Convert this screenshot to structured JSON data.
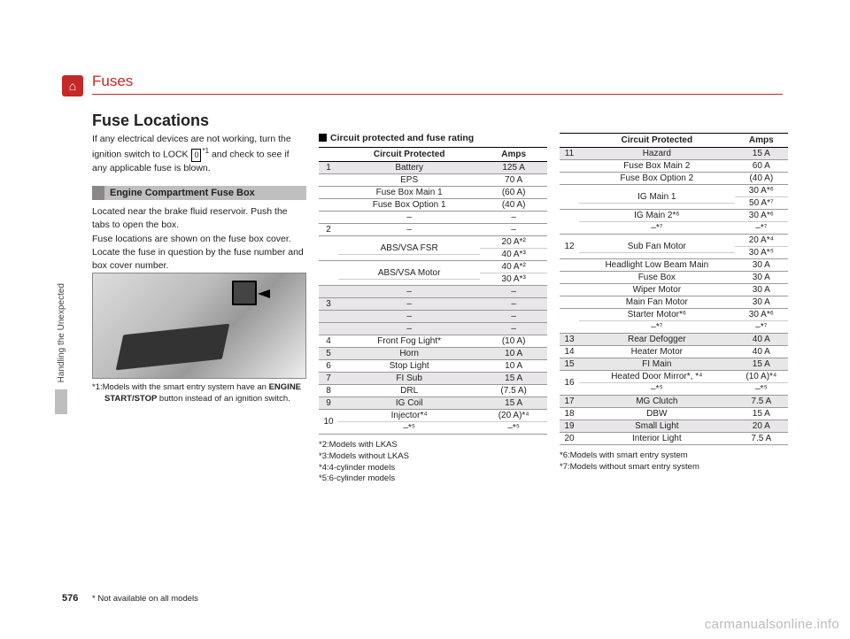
{
  "chapter": "Fuses",
  "sidebar_label": "Handling the Unexpected",
  "page_number": "576",
  "star_footnote": "* Not available on all models",
  "watermark": "carmanualsonline.info",
  "section_title": "Fuse Locations",
  "intro_text_1": "If any electrical devices are not working, turn the ignition switch to LOCK ",
  "intro_lock": "0",
  "intro_sup": "*1",
  "intro_text_2": " and check to see if any applicable fuse is blown.",
  "engine_box_heading": "Engine Compartment Fuse Box",
  "engine_box_text": "Located near the brake fluid reservoir. Push the tabs to open the box.\nFuse locations are shown on the fuse box cover. Locate the fuse in question by the fuse number and box cover number.",
  "note1_prefix": "*1:Models with the smart entry system have an ",
  "note1_bold": "ENGINE START/STOP",
  "note1_suffix": " button instead of an ignition switch.",
  "table_heading": "Circuit protected and fuse rating",
  "th_circuit": "Circuit Protected",
  "th_amps": "Amps",
  "table1": [
    {
      "n": "1",
      "c": "Battery",
      "a": "125 A",
      "shade": true
    },
    {
      "n": "",
      "c": "EPS",
      "a": "70 A",
      "shade": false
    },
    {
      "n": "",
      "c": "Fuse Box Main 1",
      "a": "(60 A)",
      "shade": false
    },
    {
      "n": "",
      "c": "Fuse Box Option 1",
      "a": "(40 A)",
      "shade": false
    },
    {
      "n": "",
      "c": "–",
      "a": "–",
      "shade": false
    },
    {
      "n": "2",
      "c": "–",
      "a": "–",
      "shade": false
    },
    {
      "n": "",
      "c": "ABS/VSA FSR",
      "a": "20 A*²\n40 A*³",
      "shade": false,
      "multi": true
    },
    {
      "n": "",
      "c": "ABS/VSA Motor",
      "a": "40 A*²\n30 A*³",
      "shade": false,
      "multi": true
    },
    {
      "n": "",
      "c": "–",
      "a": "–",
      "shade": true
    },
    {
      "n": "3",
      "c": "–",
      "a": "–",
      "shade": true
    },
    {
      "n": "",
      "c": "–",
      "a": "–",
      "shade": true
    },
    {
      "n": "",
      "c": "–",
      "a": "–",
      "shade": true
    },
    {
      "n": "4",
      "c": "Front Fog Light*",
      "a": "(10 A)",
      "shade": false
    },
    {
      "n": "5",
      "c": "Horn",
      "a": "10 A",
      "shade": true
    },
    {
      "n": "6",
      "c": "Stop Light",
      "a": "10 A",
      "shade": false
    },
    {
      "n": "7",
      "c": "FI Sub",
      "a": "15 A",
      "shade": true
    },
    {
      "n": "8",
      "c": "DRL",
      "a": "(7.5 A)",
      "shade": false
    },
    {
      "n": "9",
      "c": "IG Coil",
      "a": "15 A",
      "shade": true
    },
    {
      "n": "10",
      "c": "Injector*⁴\n–*⁵",
      "a": "(20 A)*⁴\n–*⁵",
      "shade": false,
      "multi": true
    }
  ],
  "footnotes1": "*2:Models with LKAS\n*3:Models without LKAS\n*4:4-cylinder models\n*5:6-cylinder models",
  "table2": [
    {
      "n": "11",
      "c": "Hazard",
      "a": "15 A",
      "shade": true
    },
    {
      "n": "",
      "c": "Fuse Box Main 2",
      "a": "60 A",
      "shade": false
    },
    {
      "n": "",
      "c": "Fuse Box Option 2",
      "a": "(40 A)",
      "shade": false
    },
    {
      "n": "",
      "c": "IG Main 1",
      "a": "30 A*⁶\n50 A*⁷",
      "shade": false,
      "multi": true
    },
    {
      "n": "",
      "c": "IG Main 2*⁶\n–*⁷",
      "a": "30 A*⁶\n–*⁷",
      "shade": false,
      "multi": true
    },
    {
      "n": "12",
      "c": "Sub Fan Motor",
      "a": "20 A*⁴\n30 A*⁵",
      "shade": false,
      "multi": true
    },
    {
      "n": "",
      "c": "Headlight Low Beam Main",
      "a": "30 A",
      "shade": false
    },
    {
      "n": "",
      "c": "Fuse Box",
      "a": "30 A",
      "shade": false
    },
    {
      "n": "",
      "c": "Wiper Motor",
      "a": "30 A",
      "shade": false
    },
    {
      "n": "",
      "c": "Main Fan Motor",
      "a": "30 A",
      "shade": false
    },
    {
      "n": "",
      "c": "Starter Motor*⁶\n–*⁷",
      "a": "30 A*⁶\n–*⁷",
      "shade": false,
      "multi": true
    },
    {
      "n": "13",
      "c": "Rear Defogger",
      "a": "40 A",
      "shade": true
    },
    {
      "n": "14",
      "c": "Heater Motor",
      "a": "40 A",
      "shade": false
    },
    {
      "n": "15",
      "c": "FI Main",
      "a": "15 A",
      "shade": true
    },
    {
      "n": "16",
      "c": "Heated Door Mirror*, *⁴\n–*⁵",
      "a": "(10 A)*⁴\n–*⁵",
      "shade": false,
      "multi": true
    },
    {
      "n": "17",
      "c": "MG Clutch",
      "a": "7.5 A",
      "shade": true
    },
    {
      "n": "18",
      "c": "DBW",
      "a": "15 A",
      "shade": false
    },
    {
      "n": "19",
      "c": "Small Light",
      "a": "20 A",
      "shade": true
    },
    {
      "n": "20",
      "c": "Interior Light",
      "a": "7.5 A",
      "shade": false
    }
  ],
  "footnotes2": "*6:Models with smart entry system\n*7:Models without smart entry system"
}
